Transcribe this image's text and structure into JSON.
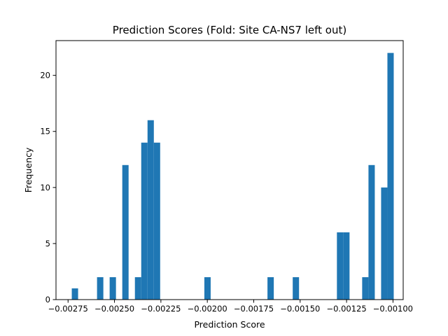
{
  "chart_data": {
    "type": "bar",
    "title": "Prediction Scores (Fold: Site CA-NS7 left out)",
    "xlabel": "Prediction Score",
    "ylabel": "Frequency",
    "xlim": [
      -0.002815,
      -0.000945
    ],
    "ylim": [
      0,
      23.1
    ],
    "grid": false,
    "x_ticks": [
      {
        "value": -0.00275,
        "label": "−0.00275"
      },
      {
        "value": -0.0025,
        "label": "−0.00250"
      },
      {
        "value": -0.00225,
        "label": "−0.00225"
      },
      {
        "value": -0.002,
        "label": "−0.00200"
      },
      {
        "value": -0.00175,
        "label": "−0.00175"
      },
      {
        "value": -0.0015,
        "label": "−0.00150"
      },
      {
        "value": -0.00125,
        "label": "−0.00125"
      },
      {
        "value": -0.001,
        "label": "−0.00100"
      }
    ],
    "y_ticks": [
      {
        "value": 0,
        "label": "0"
      },
      {
        "value": 5,
        "label": "5"
      },
      {
        "value": 10,
        "label": "10"
      },
      {
        "value": 15,
        "label": "15"
      },
      {
        "value": 20,
        "label": "20"
      }
    ],
    "bin_width": 3.4e-05,
    "bins": [
      {
        "x_start": -0.00273,
        "count": 1
      },
      {
        "x_start": -0.002594,
        "count": 2
      },
      {
        "x_start": -0.002526,
        "count": 2
      },
      {
        "x_start": -0.002458,
        "count": 12
      },
      {
        "x_start": -0.00239,
        "count": 2
      },
      {
        "x_start": -0.002356,
        "count": 14
      },
      {
        "x_start": -0.002322,
        "count": 16
      },
      {
        "x_start": -0.002288,
        "count": 14
      },
      {
        "x_start": -0.002016,
        "count": 2
      },
      {
        "x_start": -0.001676,
        "count": 2
      },
      {
        "x_start": -0.00154,
        "count": 2
      },
      {
        "x_start": -0.001302,
        "count": 6
      },
      {
        "x_start": -0.001268,
        "count": 6
      },
      {
        "x_start": -0.001166,
        "count": 2
      },
      {
        "x_start": -0.001132,
        "count": 12
      },
      {
        "x_start": -0.001064,
        "count": 10
      },
      {
        "x_start": -0.00103,
        "count": 22
      }
    ]
  }
}
